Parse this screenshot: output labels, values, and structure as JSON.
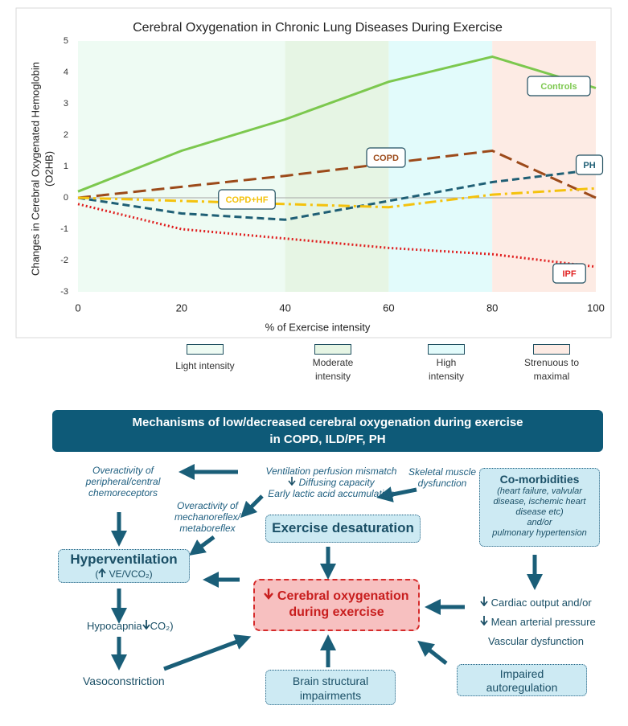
{
  "chart_data": {
    "type": "line",
    "title": "Cerebral Oxygenation in Chronic Lung Diseases During Exercise",
    "x_label": "% of Exercise intensity",
    "y_label": [
      "Changes in Cerebral Oxygenated Hemoglobin",
      "(O2HB)"
    ],
    "x": [
      0,
      20,
      40,
      60,
      80,
      100
    ],
    "xlim": [
      0,
      100
    ],
    "xticks": [
      0,
      20,
      40,
      60,
      80,
      100
    ],
    "ylim": [
      -3,
      5
    ],
    "yticks": [
      -3,
      -2,
      -1,
      0,
      1,
      2,
      3,
      4,
      5
    ],
    "grid": false,
    "bands": [
      {
        "label": "Light intensity",
        "from": 0,
        "to": 40,
        "color": "#eefbf3"
      },
      {
        "label": "Moderate intensity",
        "from": 40,
        "to": 60,
        "color": "#e6f5e4"
      },
      {
        "label": "High intensity",
        "from": 60,
        "to": 80,
        "color": "#e2fbfb"
      },
      {
        "label": "Strenuous to maximal",
        "from": 80,
        "to": 100,
        "color": "#fdebe4"
      }
    ],
    "series": [
      {
        "name": "Controls",
        "color": "#7cc84e",
        "line_style": "solid",
        "values": [
          0.2,
          1.5,
          2.5,
          3.7,
          4.5,
          3.5
        ]
      },
      {
        "name": "COPD",
        "color": "#9c4a1a",
        "line_style": "long-dash",
        "values": [
          0,
          0.35,
          0.7,
          1.1,
          1.5,
          0
        ]
      },
      {
        "name": "PH",
        "color": "#1f5f75",
        "line_style": "dashed",
        "values": [
          0,
          -0.5,
          -0.7,
          -0.1,
          0.5,
          0.9
        ]
      },
      {
        "name": "COPD+HF",
        "color": "#f4c20d",
        "line_style": "dash-dot",
        "values": [
          0,
          -0.1,
          -0.2,
          -0.3,
          0.1,
          0.3
        ]
      },
      {
        "name": "IPF",
        "color": "#e01f1f",
        "line_style": "dotted",
        "values": [
          -0.2,
          -1.0,
          -1.3,
          -1.6,
          -1.8,
          -2.2
        ]
      }
    ]
  },
  "diagram": {
    "title": [
      "Mechanisms of low/decreased cerebral oxygenation during exercise",
      "in COPD, ILD/PF, PH"
    ],
    "chemoreceptors": [
      "Overactivity of",
      "peripheral/central",
      "chemoreceptors"
    ],
    "ventilation": [
      "Ventilation perfusion mismatch",
      "Diffusing capacity",
      "Early lactic acid accumulation"
    ],
    "skeletal_muscle": [
      "Skeletal muscle",
      "dysfunction"
    ],
    "comorbidities": {
      "title": "Co-morbidities",
      "lines": [
        "(heart failure, valvular",
        "disease, ischemic heart",
        "disease etc)",
        "and/or",
        "pulmonary hypertension"
      ]
    },
    "mechanoreflex": [
      "Overactivity of",
      "mechanoreflex/",
      "metaboreflex"
    ],
    "desaturation": "Exercise desaturation",
    "hyperventilation": {
      "title": "Hyperventilation",
      "detail": [
        "(",
        "VE/VCO₂)"
      ]
    },
    "cerebral": [
      "Cerebral oxygenation",
      "during exercise"
    ],
    "hypocapnia": [
      "Hypocapnia",
      "CO₂)"
    ],
    "vasoconstriction": "Vasoconstriction",
    "cardiac": [
      "Cardiac output and/or",
      "Mean arterial pressure",
      "Vascular dysfunction"
    ],
    "brain": [
      "Brain structural",
      "impairments"
    ],
    "autoregulation": [
      "Impaired",
      "autoregulation"
    ]
  }
}
